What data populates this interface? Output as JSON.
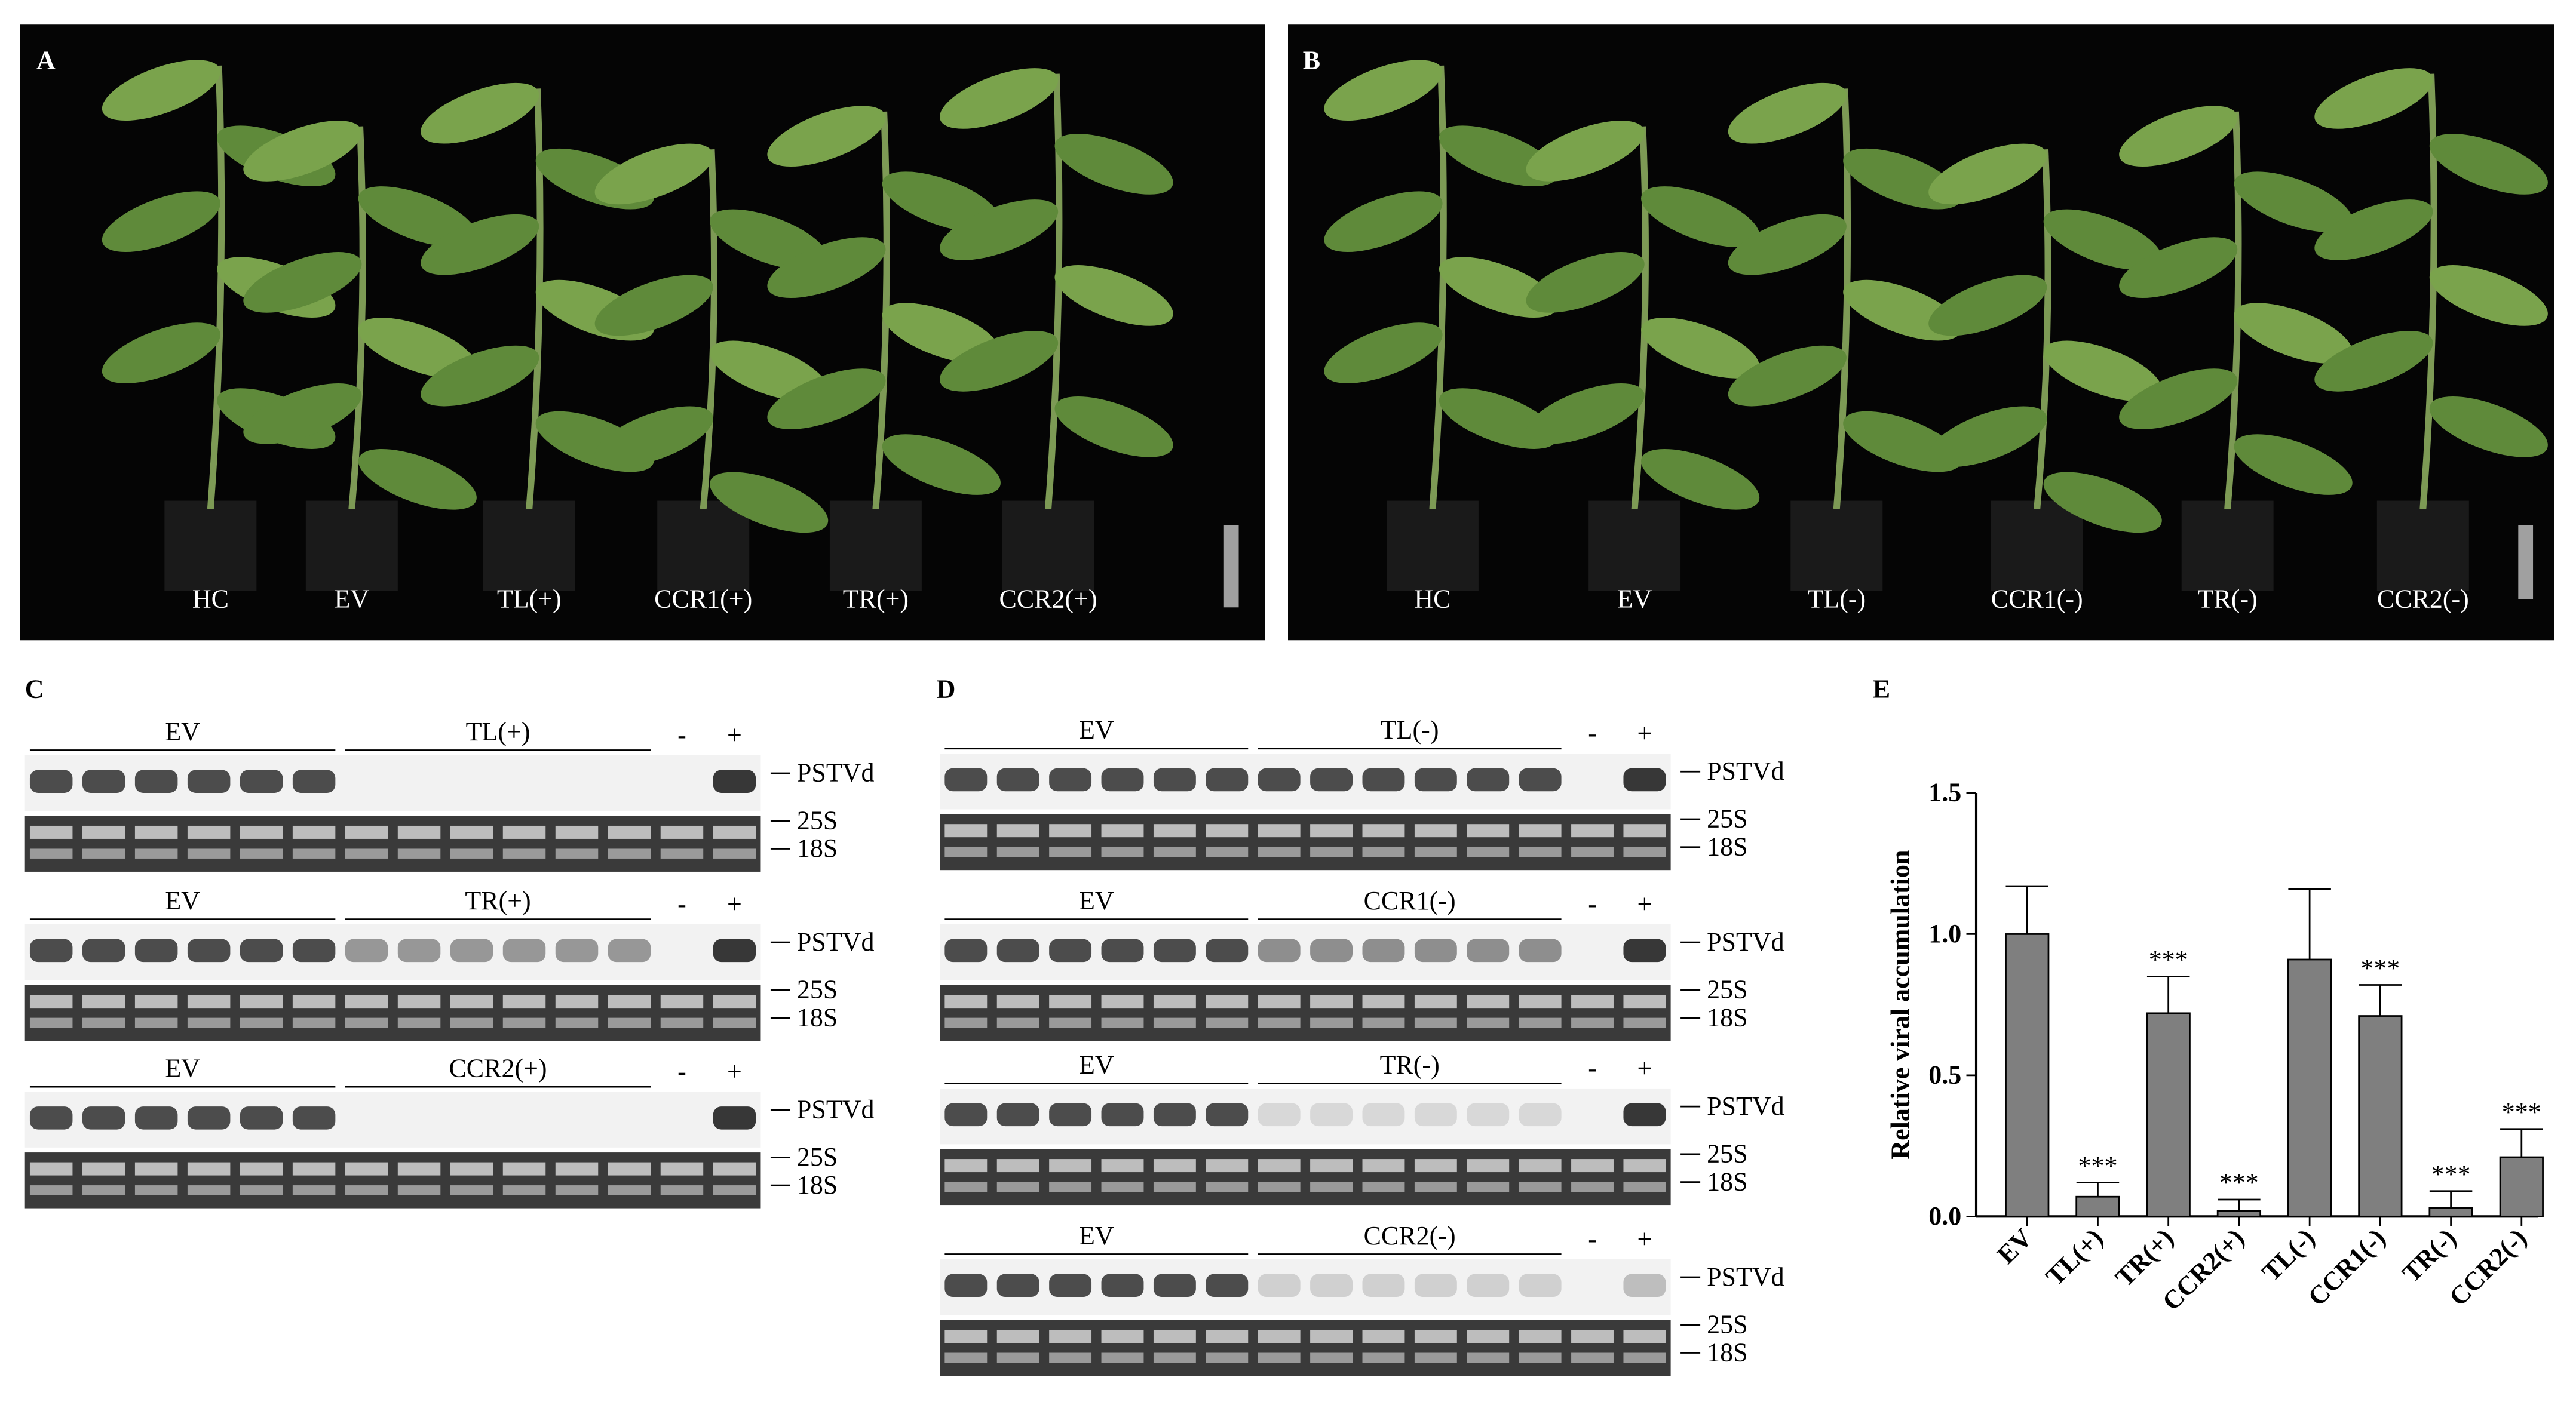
{
  "panels": {
    "A": {
      "label": "A",
      "plants": [
        "HC",
        "EV",
        "TL(+)",
        "CCR1(+)",
        "TR(+)",
        "CCR2(+)"
      ]
    },
    "B": {
      "label": "B",
      "plants": [
        "HC",
        "EV",
        "TL(-)",
        "CCR1(-)",
        "TR(-)",
        "CCR2(-)"
      ]
    },
    "C": {
      "label": "C",
      "blots": [
        {
          "groups": [
            "EV",
            "TL(+)"
          ],
          "neg": "-",
          "pos": "+",
          "bands": [
            "PSTVd",
            "25S",
            "18S"
          ]
        },
        {
          "groups": [
            "EV",
            "TR(+)"
          ],
          "neg": "-",
          "pos": "+",
          "bands": [
            "PSTVd",
            "25S",
            "18S"
          ]
        },
        {
          "groups": [
            "EV",
            "CCR2(+)"
          ],
          "neg": "-",
          "pos": "+",
          "bands": [
            "PSTVd",
            "25S",
            "18S"
          ]
        }
      ]
    },
    "D": {
      "label": "D",
      "blots": [
        {
          "groups": [
            "EV",
            "TL(-)"
          ],
          "neg": "-",
          "pos": "+",
          "bands": [
            "PSTVd",
            "25S",
            "18S"
          ]
        },
        {
          "groups": [
            "EV",
            "CCR1(-)"
          ],
          "neg": "-",
          "pos": "+",
          "bands": [
            "PSTVd",
            "25S",
            "18S"
          ]
        },
        {
          "groups": [
            "EV",
            "TR(-)"
          ],
          "neg": "-",
          "pos": "+",
          "bands": [
            "PSTVd",
            "25S",
            "18S"
          ]
        },
        {
          "groups": [
            "EV",
            "CCR2(-)"
          ],
          "neg": "-",
          "pos": "+",
          "bands": [
            "PSTVd",
            "25S",
            "18S"
          ]
        }
      ]
    }
  },
  "chart_data": {
    "type": "bar",
    "panel_label": "E",
    "y_label": "Relative viral accumulation",
    "categories": [
      "EV",
      "TL(+)",
      "TR(+)",
      "CCR2(+)",
      "TL(-)",
      "CCR1(-)",
      "TR(-)",
      "CCR2(-)"
    ],
    "values": [
      1.0,
      0.07,
      0.72,
      0.02,
      0.91,
      0.71,
      0.03,
      0.21
    ],
    "errors": [
      0.17,
      0.05,
      0.13,
      0.04,
      0.25,
      0.11,
      0.06,
      0.1
    ],
    "significance": [
      null,
      "***",
      "***",
      "***",
      null,
      "***",
      "***",
      "***"
    ],
    "color": "#7f7f7f",
    "ylim": [
      0,
      1.5
    ],
    "yticks": [
      {
        "value": 0,
        "label": "0.0"
      },
      0.5,
      {
        "value": 1,
        "label": "1.0"
      },
      1.5
    ]
  }
}
